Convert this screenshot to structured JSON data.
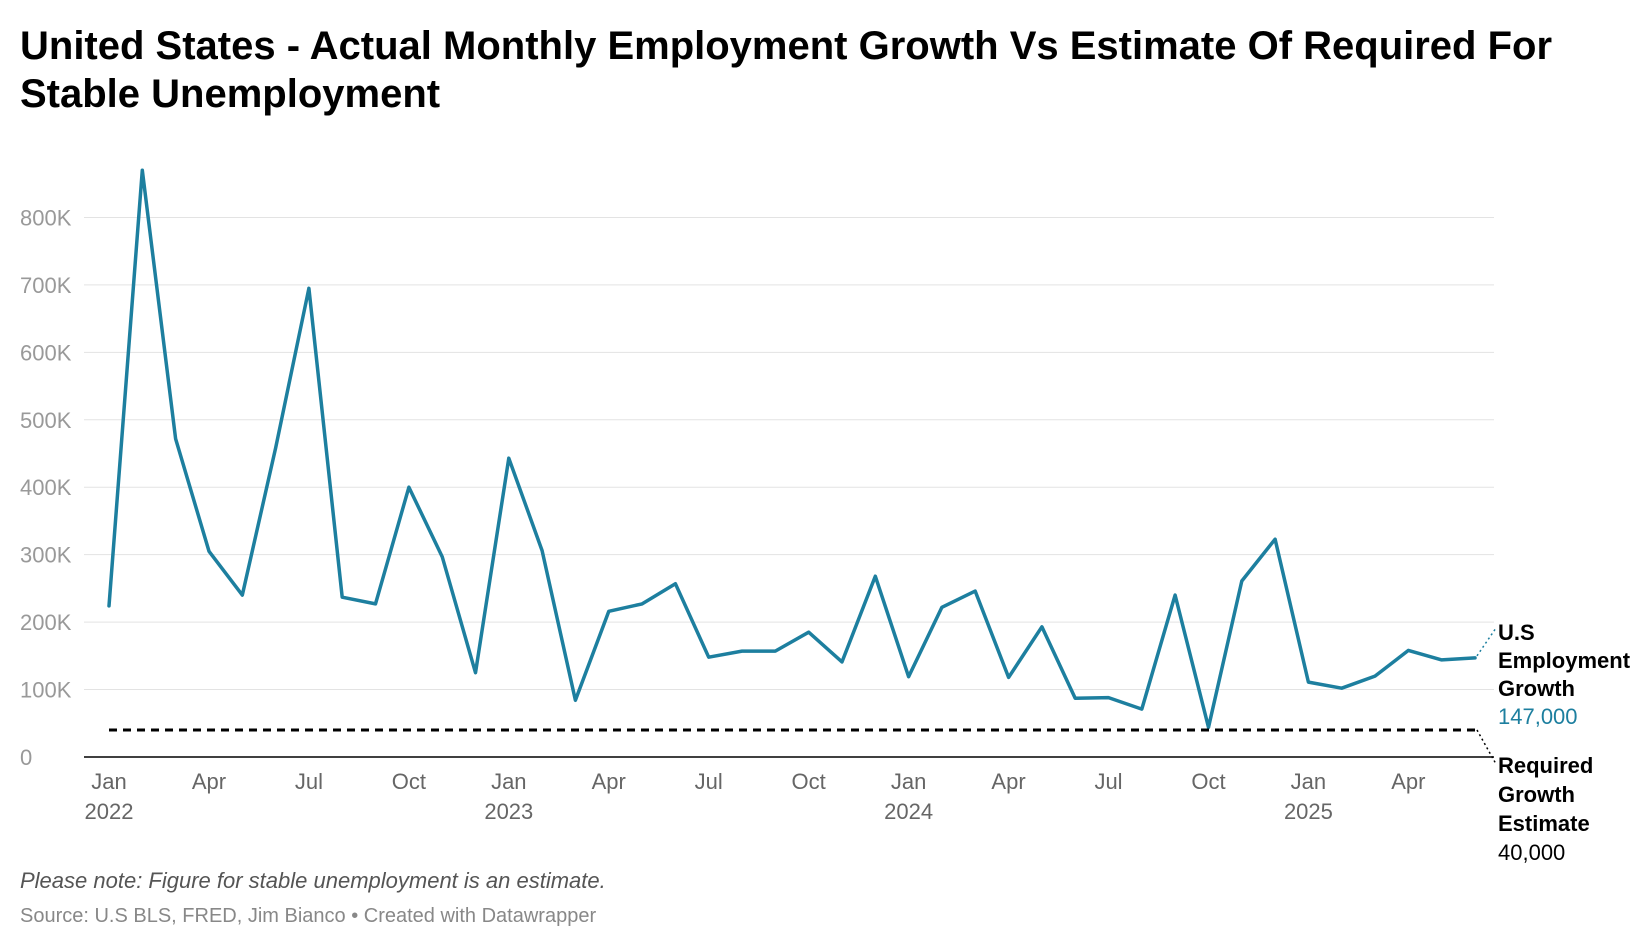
{
  "title": "United States - Actual Monthly Employment Growth Vs Estimate Of Required For Stable Unemployment",
  "note": "Please note: Figure for stable unemployment is an estimate.",
  "source": "Source: U.S BLS, FRED, Jim Bianco • Created with Datawrapper",
  "colors": {
    "series": "#1d7f9f",
    "baseline": "#000000",
    "grid": "#e3e3e3",
    "tick": "#999999"
  },
  "chart_data": {
    "type": "line",
    "title": "United States - Actual Monthly Employment Growth Vs Estimate Of Required For Stable Unemployment",
    "xlabel": "",
    "ylabel": "",
    "ylim": [
      0,
      900000
    ],
    "y_ticks": [
      {
        "value": 0,
        "label": "0"
      },
      {
        "value": 100000,
        "label": "100K"
      },
      {
        "value": 200000,
        "label": "200K"
      },
      {
        "value": 300000,
        "label": "300K"
      },
      {
        "value": 400000,
        "label": "400K"
      },
      {
        "value": 500000,
        "label": "500K"
      },
      {
        "value": 600000,
        "label": "600K"
      },
      {
        "value": 700000,
        "label": "700K"
      },
      {
        "value": 800000,
        "label": "800K"
      }
    ],
    "x_ticks": [
      {
        "index": 0,
        "label": "Jan",
        "year": "2022"
      },
      {
        "index": 3,
        "label": "Apr"
      },
      {
        "index": 6,
        "label": "Jul"
      },
      {
        "index": 9,
        "label": "Oct"
      },
      {
        "index": 12,
        "label": "Jan",
        "year": "2023"
      },
      {
        "index": 15,
        "label": "Apr"
      },
      {
        "index": 18,
        "label": "Jul"
      },
      {
        "index": 21,
        "label": "Oct"
      },
      {
        "index": 24,
        "label": "Jan",
        "year": "2024"
      },
      {
        "index": 27,
        "label": "Apr"
      },
      {
        "index": 30,
        "label": "Jul"
      },
      {
        "index": 33,
        "label": "Oct"
      },
      {
        "index": 36,
        "label": "Jan",
        "year": "2025"
      },
      {
        "index": 39,
        "label": "Apr"
      }
    ],
    "x": [
      "Jan 2022",
      "Feb 2022",
      "Mar 2022",
      "Apr 2022",
      "May 2022",
      "Jun 2022",
      "Jul 2022",
      "Aug 2022",
      "Sep 2022",
      "Oct 2022",
      "Nov 2022",
      "Dec 2022",
      "Jan 2023",
      "Feb 2023",
      "Mar 2023",
      "Apr 2023",
      "May 2023",
      "Jun 2023",
      "Jul 2023",
      "Aug 2023",
      "Sep 2023",
      "Oct 2023",
      "Nov 2023",
      "Dec 2023",
      "Jan 2024",
      "Feb 2024",
      "Mar 2024",
      "Apr 2024",
      "May 2024",
      "Jun 2024",
      "Jul 2024",
      "Aug 2024",
      "Sep 2024",
      "Oct 2024",
      "Nov 2024",
      "Dec 2024",
      "Jan 2025",
      "Feb 2025",
      "Mar 2025",
      "Apr 2025",
      "May 2025",
      "Jun 2025"
    ],
    "series": [
      {
        "name": "U.S Employment Growth",
        "label_lines": [
          "U.S",
          "Employment",
          "Growth"
        ],
        "value_label": "147,000",
        "style": "solid",
        "values": [
          224000,
          870000,
          472000,
          305000,
          240000,
          458000,
          695000,
          237000,
          227000,
          400000,
          297000,
          125000,
          443000,
          306000,
          84000,
          216000,
          227000,
          257000,
          148000,
          157000,
          157000,
          185000,
          141000,
          268000,
          119000,
          222000,
          246000,
          118000,
          193000,
          87000,
          88000,
          71000,
          240000,
          44000,
          261000,
          323000,
          111000,
          102000,
          120000,
          158000,
          144000,
          147000
        ]
      },
      {
        "name": "Required Growth Estimate",
        "label_lines": [
          "Required",
          "Growth",
          "Estimate"
        ],
        "value_label": "40,000",
        "style": "dashed",
        "values": [
          40000,
          40000,
          40000,
          40000,
          40000,
          40000,
          40000,
          40000,
          40000,
          40000,
          40000,
          40000,
          40000,
          40000,
          40000,
          40000,
          40000,
          40000,
          40000,
          40000,
          40000,
          40000,
          40000,
          40000,
          40000,
          40000,
          40000,
          40000,
          40000,
          40000,
          40000,
          40000,
          40000,
          40000,
          40000,
          40000,
          40000,
          40000,
          40000,
          40000,
          40000,
          40000
        ]
      }
    ]
  }
}
